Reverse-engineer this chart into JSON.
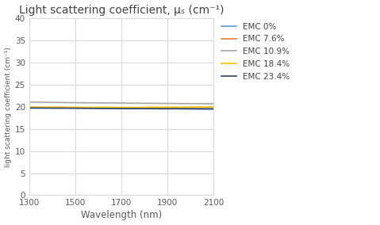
{
  "title": "Light scattering coefficient, μₛ (cm⁻¹)",
  "xlabel": "Wavelength (nm)",
  "ylabel": "light scattering coefficient (cm⁻¹)",
  "xlim": [
    1300,
    2100
  ],
  "ylim": [
    0,
    40
  ],
  "yticks": [
    0,
    5,
    10,
    15,
    20,
    25,
    30,
    35,
    40
  ],
  "xticks": [
    1300,
    1500,
    1700,
    1900,
    2100
  ],
  "series": [
    {
      "label": "EMC 0%",
      "color": "#5b9bd5",
      "y_vals": [
        19.85,
        19.82,
        19.78,
        19.8,
        19.75,
        19.72,
        19.7,
        19.68,
        19.65,
        19.62
      ],
      "lw": 1.2
    },
    {
      "label": "EMC 7.6%",
      "color": "#ed7d31",
      "y_vals": [
        19.9,
        19.88,
        19.9,
        19.85,
        19.87,
        19.84,
        19.88,
        19.86,
        19.9,
        19.92
      ],
      "lw": 1.2
    },
    {
      "label": "EMC 10.9%",
      "color": "#a5a5a5",
      "y_vals": [
        21.1,
        21.05,
        21.0,
        20.95,
        20.9,
        20.85,
        20.82,
        20.78,
        20.75,
        20.72
      ],
      "lw": 1.2
    },
    {
      "label": "EMC 18.4%",
      "color": "#ffc000",
      "y_vals": [
        19.95,
        19.92,
        19.9,
        19.88,
        19.9,
        19.88,
        19.9,
        19.92,
        19.95,
        19.98
      ],
      "lw": 1.2
    },
    {
      "label": "EMC 23.4%",
      "color": "#264478",
      "y_vals": [
        19.75,
        19.72,
        19.7,
        19.68,
        19.65,
        19.62,
        19.6,
        19.58,
        19.55,
        19.52
      ],
      "lw": 1.2
    }
  ],
  "title_color": "#404040",
  "axis_label_color": "#595959",
  "tick_label_color": "#595959",
  "legend_text_color": "#404040",
  "background_color": "#ffffff",
  "grid_color": "#d9d9d9",
  "spine_color": "#d9d9d9"
}
